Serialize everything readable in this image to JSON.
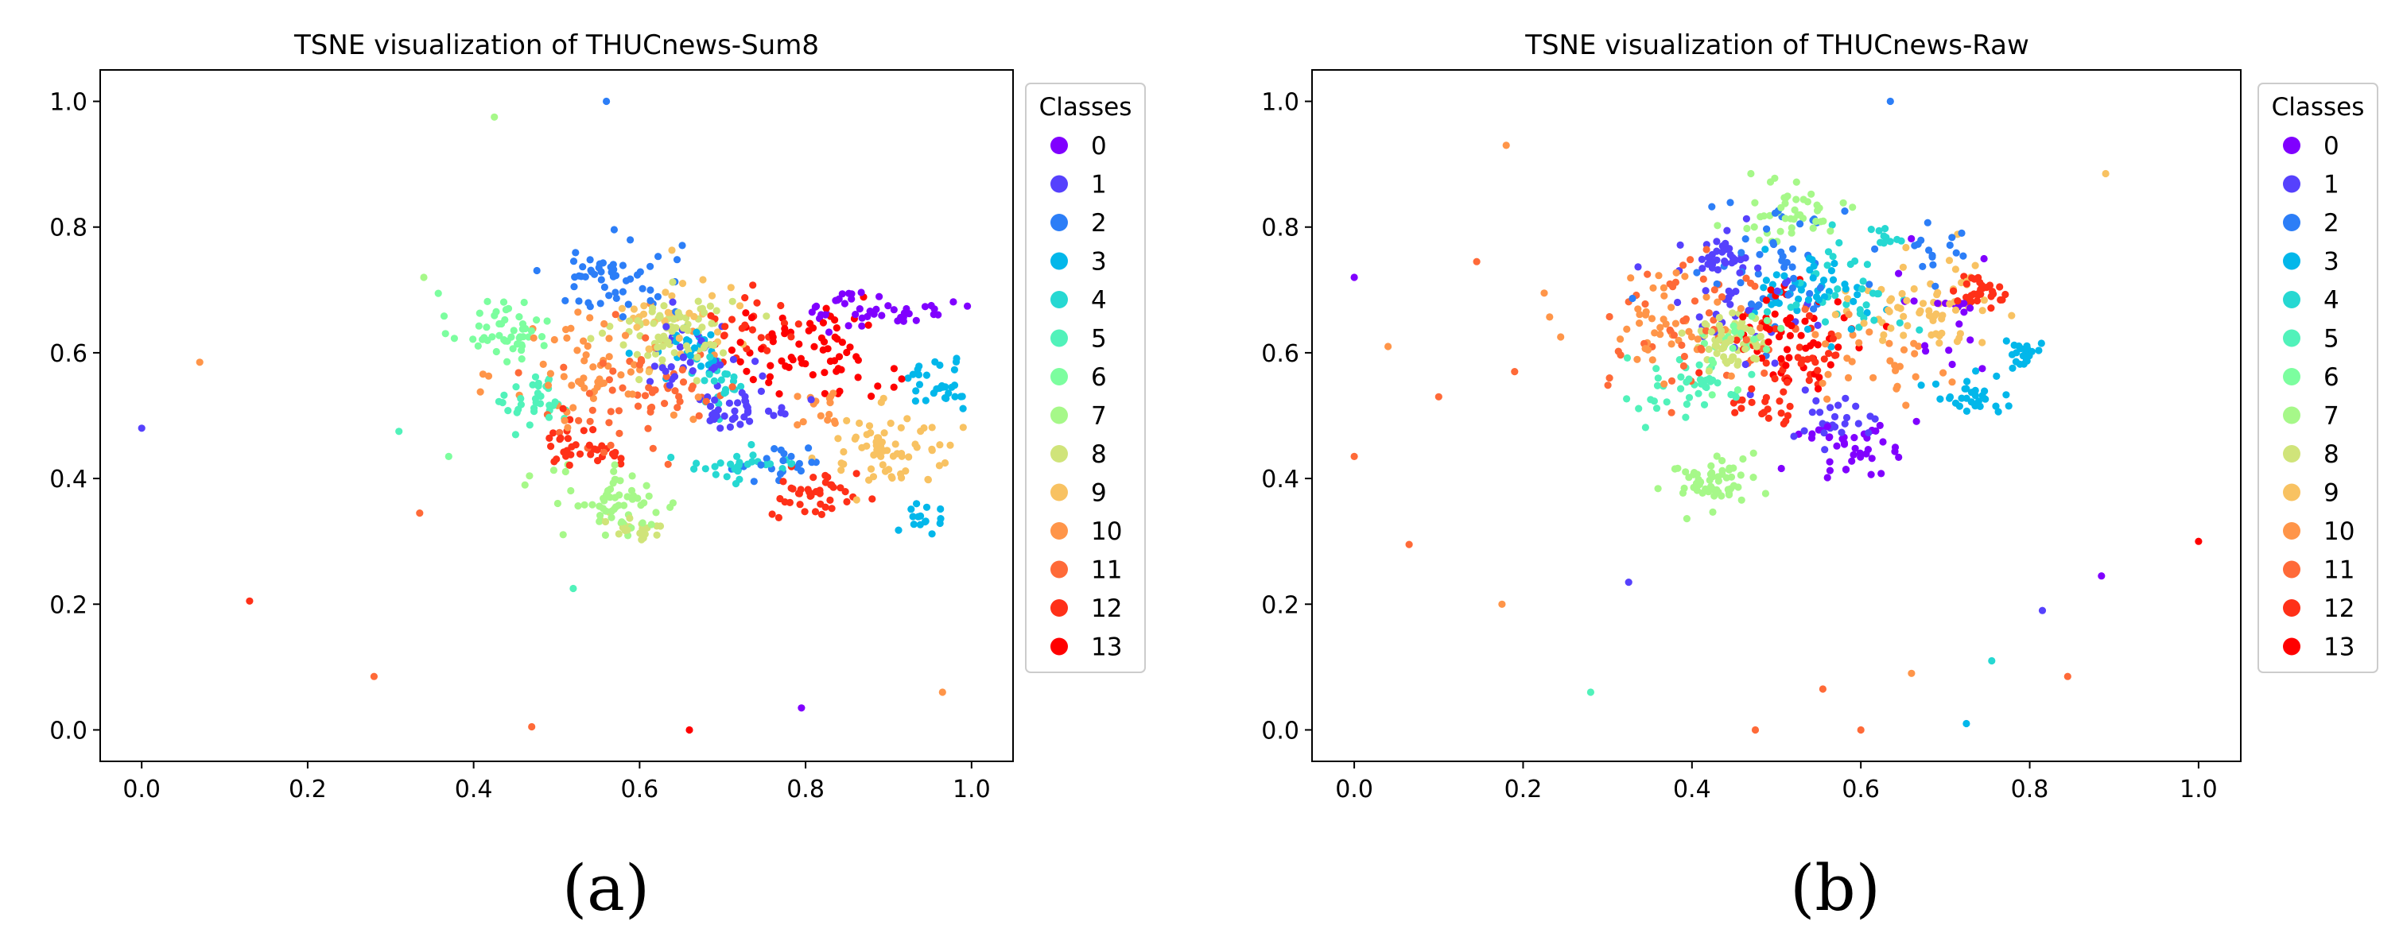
{
  "chart_data": [
    {
      "type": "scatter",
      "title": "TSNE visualization of THUCnews-Sum8",
      "caption": "(a)",
      "xlabel": "",
      "ylabel": "",
      "xlim": [
        -0.05,
        1.05
      ],
      "ylim": [
        -0.05,
        1.05
      ],
      "xticks": [
        "0.0",
        "0.2",
        "0.4",
        "0.6",
        "0.8",
        "1.0"
      ],
      "yticks": [
        "0.0",
        "0.2",
        "0.4",
        "0.6",
        "0.8",
        "1.0"
      ],
      "legend_title": "Classes",
      "legend_position": "outside-right",
      "classes": [
        "0",
        "1",
        "2",
        "3",
        "4",
        "5",
        "6",
        "7",
        "8",
        "9",
        "10",
        "11",
        "12",
        "13"
      ],
      "colors": [
        "#8000ff",
        "#5641fd",
        "#2c7ef7",
        "#02b7ea",
        "#26d8d2",
        "#51f2ba",
        "#7cfe9f",
        "#a6f889",
        "#d0e47a",
        "#f8c262",
        "#ff9549",
        "#ff6a38",
        "#ff3018",
        "#ff0000"
      ],
      "outliers": [
        {
          "c": 1,
          "x": 0.0,
          "y": 0.48
        },
        {
          "c": 10,
          "x": 0.07,
          "y": 0.585
        },
        {
          "c": 12,
          "x": 0.13,
          "y": 0.205
        },
        {
          "c": 11,
          "x": 0.28,
          "y": 0.085
        },
        {
          "c": 5,
          "x": 0.31,
          "y": 0.475
        },
        {
          "c": 7,
          "x": 0.34,
          "y": 0.72
        },
        {
          "c": 11,
          "x": 0.335,
          "y": 0.345
        },
        {
          "c": 6,
          "x": 0.37,
          "y": 0.435
        },
        {
          "c": 7,
          "x": 0.425,
          "y": 0.975
        },
        {
          "c": 11,
          "x": 0.47,
          "y": 0.005
        },
        {
          "c": 5,
          "x": 0.52,
          "y": 0.225
        },
        {
          "c": 2,
          "x": 0.56,
          "y": 1.0
        },
        {
          "c": 13,
          "x": 0.66,
          "y": 0.0
        },
        {
          "c": 0,
          "x": 0.795,
          "y": 0.035
        },
        {
          "c": 10,
          "x": 0.965,
          "y": 0.06
        }
      ],
      "clusters": [
        {
          "c": 6,
          "x": 0.43,
          "y": 0.64,
          "sx": 0.03,
          "sy": 0.028,
          "n": 50
        },
        {
          "c": 2,
          "x": 0.57,
          "y": 0.72,
          "sx": 0.04,
          "sy": 0.03,
          "n": 55
        },
        {
          "c": 8,
          "x": 0.64,
          "y": 0.635,
          "sx": 0.035,
          "sy": 0.03,
          "n": 80
        },
        {
          "c": 9,
          "x": 0.645,
          "y": 0.655,
          "sx": 0.045,
          "sy": 0.04,
          "n": 35
        },
        {
          "c": 5,
          "x": 0.48,
          "y": 0.52,
          "sx": 0.02,
          "sy": 0.022,
          "n": 35
        },
        {
          "c": 10,
          "x": 0.55,
          "y": 0.58,
          "sx": 0.055,
          "sy": 0.05,
          "n": 60
        },
        {
          "c": 11,
          "x": 0.6,
          "y": 0.53,
          "sx": 0.06,
          "sy": 0.05,
          "n": 60
        },
        {
          "c": 12,
          "x": 0.54,
          "y": 0.455,
          "sx": 0.03,
          "sy": 0.02,
          "n": 35
        },
        {
          "c": 7,
          "x": 0.57,
          "y": 0.36,
          "sx": 0.04,
          "sy": 0.028,
          "n": 60
        },
        {
          "c": 8,
          "x": 0.6,
          "y": 0.325,
          "sx": 0.02,
          "sy": 0.012,
          "n": 20
        },
        {
          "c": 1,
          "x": 0.66,
          "y": 0.59,
          "sx": 0.03,
          "sy": 0.03,
          "n": 35
        },
        {
          "c": 3,
          "x": 0.66,
          "y": 0.6,
          "sx": 0.025,
          "sy": 0.025,
          "n": 25
        },
        {
          "c": 4,
          "x": 0.7,
          "y": 0.56,
          "sx": 0.02,
          "sy": 0.02,
          "n": 25
        },
        {
          "c": 1,
          "x": 0.72,
          "y": 0.51,
          "sx": 0.03,
          "sy": 0.015,
          "n": 35
        },
        {
          "c": 13,
          "x": 0.8,
          "y": 0.6,
          "sx": 0.05,
          "sy": 0.035,
          "n": 70
        },
        {
          "c": 12,
          "x": 0.74,
          "y": 0.64,
          "sx": 0.03,
          "sy": 0.03,
          "n": 25
        },
        {
          "c": 0,
          "x": 0.89,
          "y": 0.67,
          "sx": 0.04,
          "sy": 0.015,
          "n": 45
        },
        {
          "c": 3,
          "x": 0.96,
          "y": 0.55,
          "sx": 0.025,
          "sy": 0.02,
          "n": 30
        },
        {
          "c": 9,
          "x": 0.9,
          "y": 0.45,
          "sx": 0.04,
          "sy": 0.03,
          "n": 65
        },
        {
          "c": 10,
          "x": 0.82,
          "y": 0.505,
          "sx": 0.02,
          "sy": 0.02,
          "n": 15
        },
        {
          "c": 4,
          "x": 0.72,
          "y": 0.42,
          "sx": 0.04,
          "sy": 0.012,
          "n": 30
        },
        {
          "c": 2,
          "x": 0.77,
          "y": 0.425,
          "sx": 0.03,
          "sy": 0.015,
          "n": 20
        },
        {
          "c": 12,
          "x": 0.815,
          "y": 0.37,
          "sx": 0.025,
          "sy": 0.02,
          "n": 40
        },
        {
          "c": 3,
          "x": 0.94,
          "y": 0.335,
          "sx": 0.015,
          "sy": 0.015,
          "n": 15
        }
      ]
    },
    {
      "type": "scatter",
      "title": "TSNE visualization of THUCnews-Raw",
      "caption": "(b)",
      "xlabel": "",
      "ylabel": "",
      "xlim": [
        -0.05,
        1.05
      ],
      "ylim": [
        -0.05,
        1.05
      ],
      "xticks": [
        "0.0",
        "0.2",
        "0.4",
        "0.6",
        "0.8",
        "1.0"
      ],
      "yticks": [
        "0.0",
        "0.2",
        "0.4",
        "0.6",
        "0.8",
        "1.0"
      ],
      "legend_title": "Classes",
      "legend_position": "outside-right",
      "classes": [
        "0",
        "1",
        "2",
        "3",
        "4",
        "5",
        "6",
        "7",
        "8",
        "9",
        "10",
        "11",
        "12",
        "13"
      ],
      "colors": [
        "#8000ff",
        "#5641fd",
        "#2c7ef7",
        "#02b7ea",
        "#26d8d2",
        "#51f2ba",
        "#7cfe9f",
        "#a6f889",
        "#d0e47a",
        "#f8c262",
        "#ff9549",
        "#ff6a38",
        "#ff3018",
        "#ff0000"
      ],
      "outliers": [
        {
          "c": 0,
          "x": 0.0,
          "y": 0.72
        },
        {
          "c": 11,
          "x": 0.0,
          "y": 0.435
        },
        {
          "c": 10,
          "x": 0.04,
          "y": 0.61
        },
        {
          "c": 11,
          "x": 0.065,
          "y": 0.295
        },
        {
          "c": 11,
          "x": 0.1,
          "y": 0.53
        },
        {
          "c": 11,
          "x": 0.145,
          "y": 0.745
        },
        {
          "c": 10,
          "x": 0.18,
          "y": 0.93
        },
        {
          "c": 10,
          "x": 0.175,
          "y": 0.2
        },
        {
          "c": 11,
          "x": 0.19,
          "y": 0.57
        },
        {
          "c": 10,
          "x": 0.225,
          "y": 0.695
        },
        {
          "c": 5,
          "x": 0.28,
          "y": 0.06
        },
        {
          "c": 1,
          "x": 0.325,
          "y": 0.235
        },
        {
          "c": 11,
          "x": 0.475,
          "y": 0.0
        },
        {
          "c": 11,
          "x": 0.555,
          "y": 0.065
        },
        {
          "c": 11,
          "x": 0.6,
          "y": 0.0
        },
        {
          "c": 10,
          "x": 0.66,
          "y": 0.09
        },
        {
          "c": 2,
          "x": 0.635,
          "y": 1.0
        },
        {
          "c": 3,
          "x": 0.725,
          "y": 0.01
        },
        {
          "c": 4,
          "x": 0.755,
          "y": 0.11
        },
        {
          "c": 1,
          "x": 0.815,
          "y": 0.19
        },
        {
          "c": 11,
          "x": 0.845,
          "y": 0.085
        },
        {
          "c": 0,
          "x": 0.885,
          "y": 0.245
        },
        {
          "c": 9,
          "x": 0.89,
          "y": 0.885
        },
        {
          "c": 13,
          "x": 1.0,
          "y": 0.3
        }
      ],
      "clusters": [
        {
          "c": 7,
          "x": 0.52,
          "y": 0.82,
          "sx": 0.03,
          "sy": 0.03,
          "n": 45
        },
        {
          "c": 1,
          "x": 0.44,
          "y": 0.75,
          "sx": 0.015,
          "sy": 0.012,
          "n": 25
        },
        {
          "c": 1,
          "x": 0.44,
          "y": 0.7,
          "sx": 0.04,
          "sy": 0.05,
          "n": 40
        },
        {
          "c": 2,
          "x": 0.5,
          "y": 0.74,
          "sx": 0.05,
          "sy": 0.04,
          "n": 50
        },
        {
          "c": 3,
          "x": 0.54,
          "y": 0.7,
          "sx": 0.035,
          "sy": 0.03,
          "n": 45
        },
        {
          "c": 4,
          "x": 0.58,
          "y": 0.7,
          "sx": 0.04,
          "sy": 0.04,
          "n": 35
        },
        {
          "c": 5,
          "x": 0.4,
          "y": 0.55,
          "sx": 0.03,
          "sy": 0.025,
          "n": 40
        },
        {
          "c": 8,
          "x": 0.45,
          "y": 0.62,
          "sx": 0.025,
          "sy": 0.02,
          "n": 60
        },
        {
          "c": 6,
          "x": 0.45,
          "y": 0.62,
          "sx": 0.03,
          "sy": 0.03,
          "n": 25
        },
        {
          "c": 10,
          "x": 0.36,
          "y": 0.64,
          "sx": 0.04,
          "sy": 0.04,
          "n": 45
        },
        {
          "c": 11,
          "x": 0.42,
          "y": 0.64,
          "sx": 0.06,
          "sy": 0.06,
          "n": 55
        },
        {
          "c": 13,
          "x": 0.53,
          "y": 0.63,
          "sx": 0.04,
          "sy": 0.04,
          "n": 55
        },
        {
          "c": 12,
          "x": 0.52,
          "y": 0.59,
          "sx": 0.04,
          "sy": 0.04,
          "n": 35
        },
        {
          "c": 12,
          "x": 0.5,
          "y": 0.52,
          "sx": 0.02,
          "sy": 0.02,
          "n": 20
        },
        {
          "c": 7,
          "x": 0.42,
          "y": 0.4,
          "sx": 0.025,
          "sy": 0.025,
          "n": 55
        },
        {
          "c": 0,
          "x": 0.585,
          "y": 0.45,
          "sx": 0.03,
          "sy": 0.02,
          "n": 40
        },
        {
          "c": 1,
          "x": 0.57,
          "y": 0.5,
          "sx": 0.03,
          "sy": 0.02,
          "n": 25
        },
        {
          "c": 9,
          "x": 0.67,
          "y": 0.67,
          "sx": 0.04,
          "sy": 0.035,
          "n": 70
        },
        {
          "c": 12,
          "x": 0.74,
          "y": 0.7,
          "sx": 0.015,
          "sy": 0.012,
          "n": 30
        },
        {
          "c": 3,
          "x": 0.72,
          "y": 0.53,
          "sx": 0.025,
          "sy": 0.015,
          "n": 30
        },
        {
          "c": 3,
          "x": 0.79,
          "y": 0.6,
          "sx": 0.015,
          "sy": 0.012,
          "n": 20
        },
        {
          "c": 2,
          "x": 0.69,
          "y": 0.76,
          "sx": 0.02,
          "sy": 0.02,
          "n": 15
        },
        {
          "c": 4,
          "x": 0.63,
          "y": 0.78,
          "sx": 0.015,
          "sy": 0.01,
          "n": 10
        },
        {
          "c": 10,
          "x": 0.6,
          "y": 0.58,
          "sx": 0.05,
          "sy": 0.04,
          "n": 30
        },
        {
          "c": 0,
          "x": 0.7,
          "y": 0.65,
          "sx": 0.03,
          "sy": 0.05,
          "n": 20
        }
      ]
    }
  ]
}
